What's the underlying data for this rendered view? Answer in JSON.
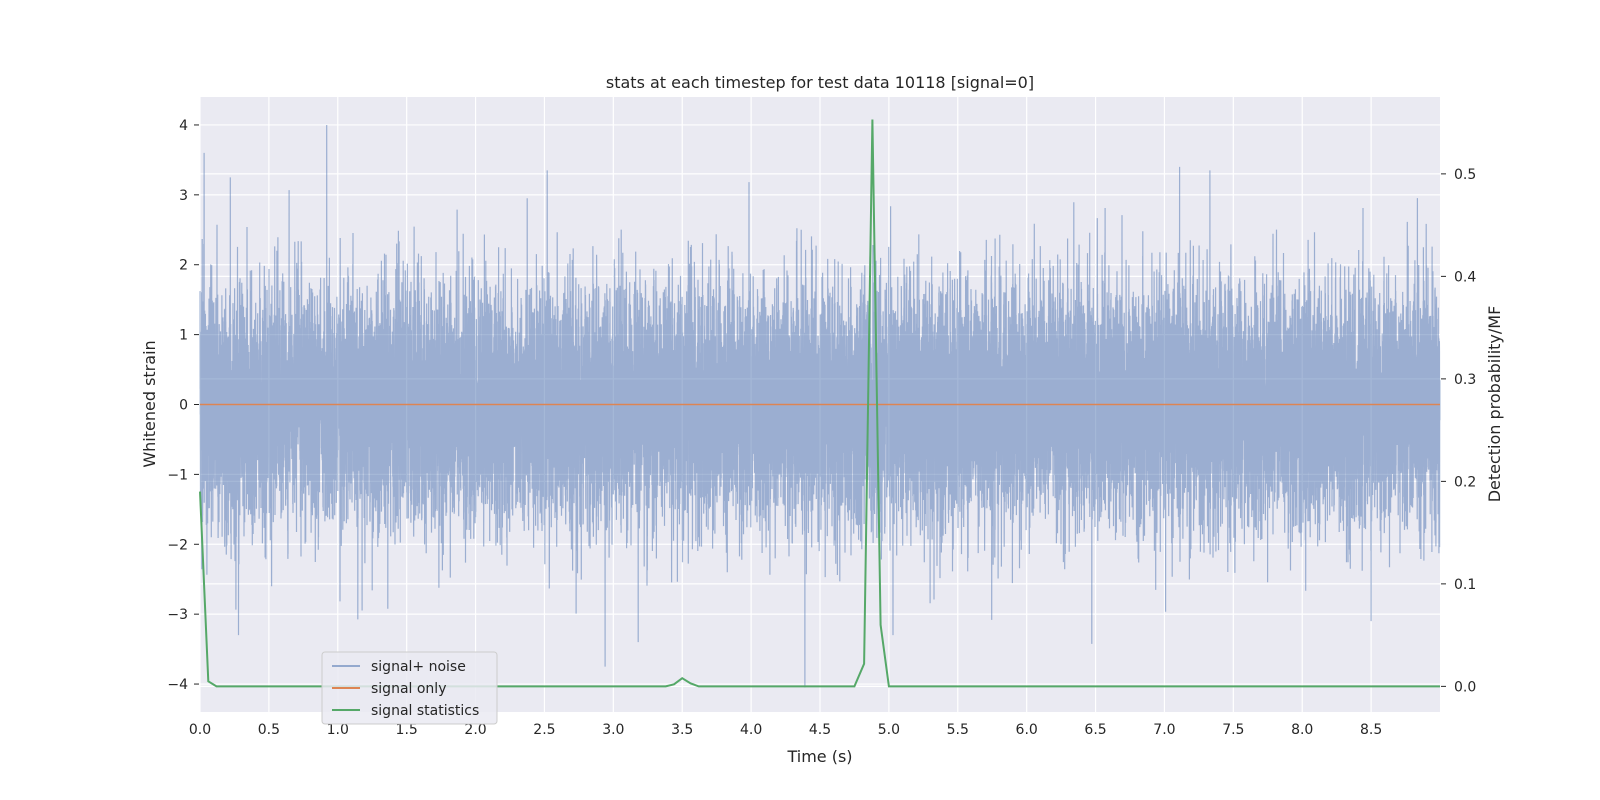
{
  "chart_data": {
    "type": "line",
    "title": "stats at each timestep for test data 10118 [signal=0]",
    "xlabel": "Time (s)",
    "ylabel": "Whitened strain",
    "y2label": "Detection probability/MF",
    "xlim": [
      0.0,
      9.0
    ],
    "ylim": [
      -4.4,
      4.4
    ],
    "y2lim": [
      -0.025,
      0.575
    ],
    "xticks": [
      "0.0",
      "0.5",
      "1.0",
      "1.5",
      "2.0",
      "2.5",
      "3.0",
      "3.5",
      "4.0",
      "4.5",
      "5.0",
      "5.5",
      "6.0",
      "6.5",
      "7.0",
      "7.5",
      "8.0",
      "8.5"
    ],
    "yticks": [
      "4",
      "3",
      "2",
      "1",
      "0",
      "−1",
      "−2",
      "−3",
      "−4"
    ],
    "y2ticks": [
      "0.5",
      "0.4",
      "0.3",
      "0.2",
      "0.1",
      "0.0"
    ],
    "grid": true,
    "legend_position": "lower-left",
    "series": [
      {
        "name": "signal+ noise",
        "color": "#4c72b0",
        "kind": "noise",
        "sample_rate_hz": 2048,
        "std": 0.85,
        "duration_s": 9.0,
        "peaks": [
          {
            "x": 0.03,
            "y": 3.6
          },
          {
            "x": 0.22,
            "y": 3.25
          },
          {
            "x": 0.92,
            "y": 4.0
          },
          {
            "x": 2.52,
            "y": 3.35
          },
          {
            "x": 7.11,
            "y": 3.4
          },
          {
            "x": 7.33,
            "y": 3.35
          },
          {
            "x": 4.39,
            "y": -4.05
          },
          {
            "x": 2.94,
            "y": -3.75
          },
          {
            "x": 0.28,
            "y": -3.3
          },
          {
            "x": 5.03,
            "y": -3.3
          },
          {
            "x": 8.5,
            "y": -3.1
          },
          {
            "x": 3.18,
            "y": -3.4
          }
        ]
      },
      {
        "name": "signal only",
        "color": "#dd8452",
        "x": [
          0.0,
          9.0
        ],
        "y": [
          0.0,
          0.0
        ]
      },
      {
        "name": "signal statistics",
        "color": "#55a868",
        "axis": "right",
        "x": [
          0.0,
          0.06,
          0.12,
          0.5,
          1.0,
          2.0,
          3.0,
          3.38,
          3.44,
          3.5,
          3.56,
          3.62,
          4.0,
          4.5,
          4.75,
          4.82,
          4.88,
          4.94,
          5.0,
          6.0,
          7.0,
          8.0,
          9.0
        ],
        "y": [
          0.19,
          0.005,
          0.0,
          0.0,
          0.0,
          0.0,
          0.0,
          0.0,
          0.002,
          0.008,
          0.003,
          0.0,
          0.0,
          0.0,
          0.0,
          0.022,
          0.553,
          0.06,
          0.0,
          0.0,
          0.0,
          0.0,
          0.0
        ]
      }
    ]
  }
}
